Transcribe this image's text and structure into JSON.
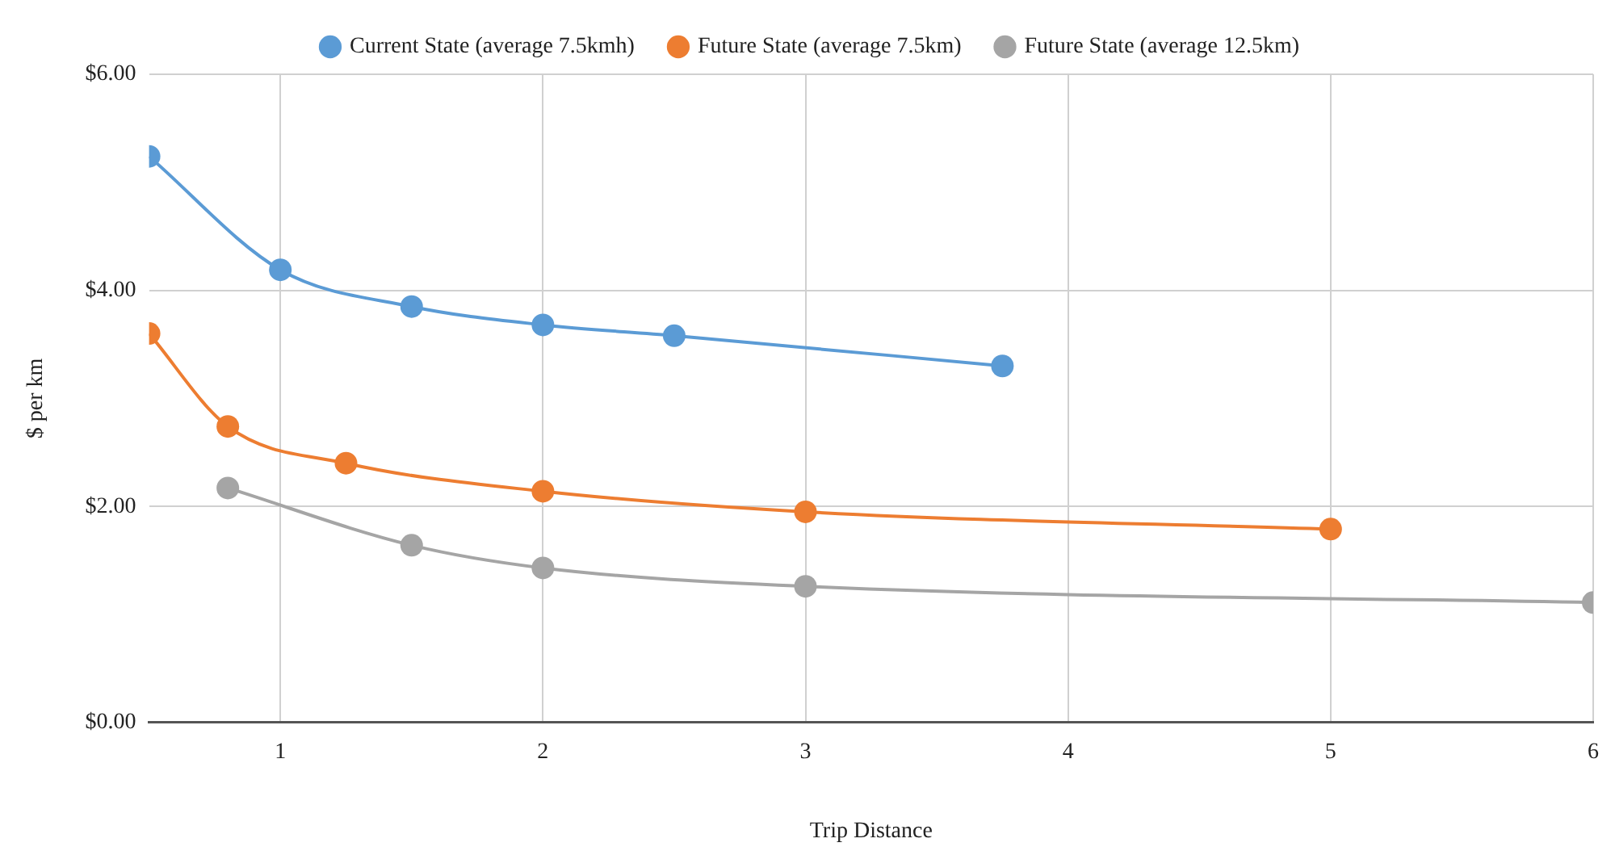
{
  "chart_data": {
    "type": "line",
    "xlabel": "Trip Distance",
    "ylabel": "$ per km",
    "series": [
      {
        "name": "Current State (average 7.5kmh)",
        "color": "#5b9bd5",
        "x": [
          0.5,
          1,
          1.5,
          2,
          2.5,
          3.75
        ],
        "values": [
          5.24,
          4.19,
          3.85,
          3.68,
          3.58,
          3.3
        ]
      },
      {
        "name": "Future State (average 7.5km)",
        "color": "#ed7d31",
        "x": [
          0.5,
          0.8,
          1.25,
          2,
          3,
          5
        ],
        "values": [
          3.6,
          2.74,
          2.4,
          2.14,
          1.95,
          1.79
        ]
      },
      {
        "name": "Future State (average 12.5km)",
        "color": "#a5a5a5",
        "x": [
          0.8,
          1.5,
          2,
          3,
          6
        ],
        "values": [
          2.17,
          1.64,
          1.43,
          1.26,
          1.11
        ]
      }
    ],
    "xlim": [
      0.5,
      6
    ],
    "xticks": [
      1,
      2,
      3,
      4,
      5,
      6
    ],
    "ylim": [
      0,
      6
    ],
    "yticks": [
      {
        "value": 0,
        "label": "$0.00"
      },
      {
        "value": 2,
        "label": "$2.00"
      },
      {
        "value": 4,
        "label": "$4.00"
      },
      {
        "value": 6,
        "label": "$6.00"
      }
    ],
    "grid": true,
    "legend": "top",
    "marker": "circle",
    "line_style": "solid"
  }
}
